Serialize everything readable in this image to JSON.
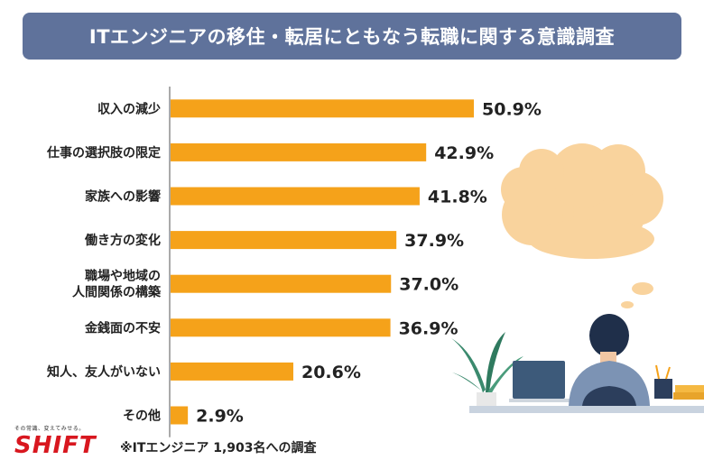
{
  "title": "ITエンジニアの移住・転居にともなう転職に関する意識調査",
  "note": "※ITエンジニア 1,903名への調査",
  "brand": {
    "tagline": "その常識、変えてみせる。",
    "logo": "SHIFT",
    "color": "#d8171f"
  },
  "colors": {
    "title_bg": "#5f729b",
    "bar": "#f5a21a",
    "axis": "#555555"
  },
  "chart_data": {
    "type": "bar",
    "orientation": "horizontal",
    "title": "ITエンジニアの移住・転居にともなう転職に関する意識調査",
    "categories": [
      [
        "収入の減少"
      ],
      [
        "仕事の選択肢の限定"
      ],
      [
        "家族への影響"
      ],
      [
        "働き方の変化"
      ],
      [
        "職場や地域の",
        "人間関係の構築"
      ],
      [
        "金銭面の不安"
      ],
      [
        "知人、友人がいない"
      ],
      [
        "その他"
      ]
    ],
    "values": [
      50.9,
      42.9,
      41.8,
      37.9,
      37.0,
      36.9,
      20.6,
      2.9
    ],
    "value_labels": [
      "50.9%",
      "42.9%",
      "41.8%",
      "37.9%",
      "37.0%",
      "36.9%",
      "20.6%",
      "2.9%"
    ],
    "xlim": [
      0,
      100
    ],
    "grid": false,
    "legend": "none"
  },
  "illustration": {
    "icons": [
      "thought-bubble-icon",
      "person-at-desk-icon",
      "laptop-icon",
      "potted-plant-icon",
      "pencil-cup-icon",
      "book-stack-icon"
    ]
  }
}
